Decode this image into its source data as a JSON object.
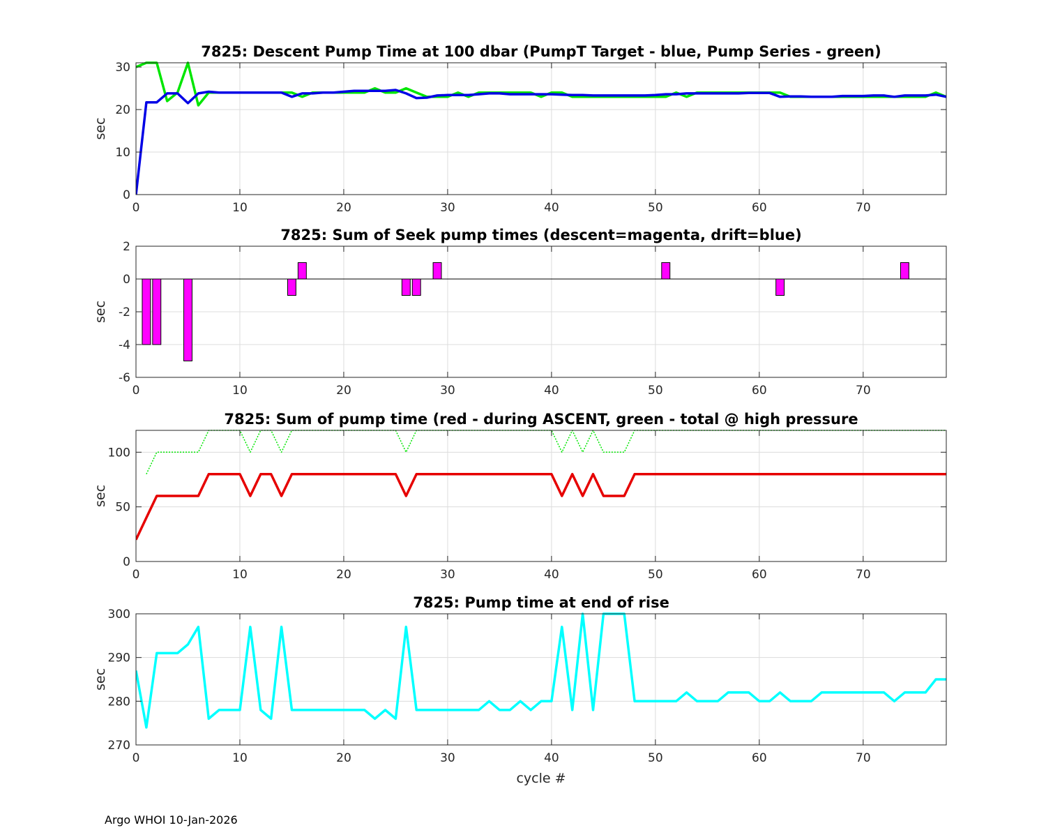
{
  "footer": "Argo WHOI 10-Jan-2026",
  "colors": {
    "green": "#00e600",
    "blue": "#0000e6",
    "magenta": "#ff00ff",
    "red": "#e60000",
    "cyan": "#00ffff",
    "grid": "#dcdcdc",
    "axis": "#262626"
  },
  "chart_data": [
    {
      "type": "line",
      "title": "7825: Descent Pump Time at 100 dbar (PumpT Target - blue, Pump Series - green)",
      "xlabel": "",
      "ylabel": "sec",
      "xlim": [
        0,
        78
      ],
      "ylim": [
        0,
        31
      ],
      "xticks": [
        0,
        10,
        20,
        30,
        40,
        50,
        60,
        70
      ],
      "yticks": [
        0,
        10,
        20,
        30
      ],
      "grid": true,
      "series": [
        {
          "color": "green",
          "style": "solid",
          "x": [
            0,
            1,
            2,
            3,
            4,
            5,
            6,
            7,
            8,
            9,
            10,
            11,
            12,
            13,
            14,
            15,
            16,
            17,
            18,
            19,
            20,
            21,
            22,
            23,
            24,
            25,
            26,
            27,
            28,
            29,
            30,
            31,
            32,
            33,
            34,
            35,
            36,
            37,
            38,
            39,
            40,
            41,
            42,
            43,
            44,
            45,
            46,
            47,
            48,
            49,
            50,
            51,
            52,
            53,
            54,
            55,
            56,
            57,
            58,
            59,
            60,
            61,
            62,
            63,
            64,
            65,
            66,
            67,
            68,
            69,
            70,
            71,
            72,
            73,
            74,
            75,
            76,
            77,
            78
          ],
          "y": [
            30,
            31,
            31,
            22,
            24,
            31,
            21,
            24,
            24,
            24,
            24,
            24,
            24,
            24,
            24,
            24,
            23,
            24,
            24,
            24,
            24,
            24,
            24,
            25,
            24,
            24,
            25,
            24,
            23,
            23,
            23,
            24,
            23,
            24,
            24,
            24,
            24,
            24,
            24,
            23,
            24,
            24,
            23,
            23,
            23,
            23,
            23,
            23,
            23,
            23,
            23,
            23,
            24,
            23,
            24,
            24,
            24,
            24,
            24,
            24,
            24,
            24,
            24,
            23,
            23,
            23,
            23,
            23,
            23,
            23,
            23,
            23,
            23,
            23,
            23,
            23,
            23,
            24,
            23
          ]
        },
        {
          "color": "blue",
          "style": "solid",
          "x": [
            0,
            1,
            2,
            3,
            4,
            5,
            6,
            7,
            8,
            9,
            10,
            11,
            12,
            13,
            14,
            15,
            16,
            17,
            18,
            19,
            20,
            21,
            22,
            23,
            24,
            25,
            26,
            27,
            28,
            29,
            30,
            31,
            32,
            33,
            34,
            35,
            36,
            37,
            38,
            39,
            40,
            41,
            42,
            43,
            44,
            45,
            46,
            47,
            48,
            49,
            50,
            51,
            52,
            53,
            54,
            55,
            56,
            57,
            58,
            59,
            60,
            61,
            62,
            63,
            64,
            65,
            66,
            67,
            68,
            69,
            70,
            71,
            72,
            73,
            74,
            75,
            76,
            77,
            78
          ],
          "y": [
            0,
            21.7,
            21.7,
            23.8,
            23.8,
            21.5,
            23.8,
            24.2,
            24,
            24,
            24,
            24,
            24,
            24,
            24,
            23,
            23.8,
            23.8,
            24,
            24,
            24.2,
            24.4,
            24.4,
            24.4,
            24.4,
            24.6,
            23.8,
            22.7,
            22.8,
            23.3,
            23.4,
            23.4,
            23.4,
            23.6,
            23.8,
            23.8,
            23.6,
            23.6,
            23.6,
            23.6,
            23.6,
            23.5,
            23.4,
            23.4,
            23.3,
            23.3,
            23.3,
            23.3,
            23.3,
            23.3,
            23.4,
            23.6,
            23.6,
            23.8,
            23.8,
            23.8,
            23.8,
            23.8,
            23.8,
            23.9,
            23.9,
            23.9,
            23,
            23.1,
            23.1,
            23,
            23,
            23,
            23.2,
            23.2,
            23.2,
            23.3,
            23.3,
            23,
            23.3,
            23.3,
            23.3,
            23.5,
            23
          ]
        }
      ]
    },
    {
      "type": "bar",
      "title": "7825: Sum of Seek pump times (descent=magenta, drift=blue)",
      "xlabel": "",
      "ylabel": "sec",
      "xlim": [
        0,
        78
      ],
      "ylim": [
        -6,
        2
      ],
      "xticks": [
        0,
        10,
        20,
        30,
        40,
        50,
        60,
        70
      ],
      "yticks": [
        -6,
        -4,
        -2,
        0,
        2
      ],
      "grid": true,
      "bar_width": 0.8,
      "series": [
        {
          "color": "magenta",
          "x": [
            1,
            2,
            5,
            15,
            16,
            26,
            27,
            29,
            51,
            62,
            74
          ],
          "y": [
            -4,
            -4,
            -5,
            -1,
            1,
            -1,
            -1,
            1,
            1,
            -1,
            1
          ]
        }
      ]
    },
    {
      "type": "line",
      "title": "7825: Sum of pump time (red - during ASCENT, green - total @ high pressure",
      "xlabel": "",
      "ylabel": "sec",
      "xlim": [
        0,
        78
      ],
      "ylim": [
        0,
        120
      ],
      "xticks": [
        0,
        10,
        20,
        30,
        40,
        50,
        60,
        70
      ],
      "yticks": [
        0,
        50,
        100
      ],
      "grid": true,
      "series": [
        {
          "color": "green",
          "style": "dotted",
          "x": [
            1,
            2,
            3,
            4,
            5,
            6,
            7,
            8,
            9,
            10,
            11,
            12,
            13,
            14,
            15,
            16,
            17,
            18,
            19,
            20,
            21,
            22,
            23,
            24,
            25,
            26,
            27,
            28,
            29,
            30,
            31,
            32,
            33,
            34,
            35,
            36,
            37,
            38,
            39,
            40,
            41,
            42,
            43,
            44,
            45,
            46,
            47,
            48,
            49,
            50,
            51,
            52,
            53,
            54,
            55,
            56,
            57,
            58,
            59,
            60,
            61,
            62,
            63,
            64,
            65,
            66,
            67,
            68,
            69,
            70,
            71,
            72,
            73,
            74,
            75,
            76,
            77,
            78
          ],
          "y": [
            80,
            100,
            100,
            100,
            100,
            100,
            120,
            120,
            120,
            120,
            100,
            120,
            120,
            100,
            120,
            120,
            120,
            120,
            120,
            120,
            120,
            120,
            120,
            120,
            120,
            100,
            120,
            120,
            120,
            120,
            120,
            120,
            120,
            120,
            120,
            120,
            120,
            120,
            120,
            120,
            100,
            120,
            100,
            120,
            100,
            100,
            100,
            120,
            120,
            120,
            120,
            120,
            120,
            120,
            120,
            120,
            120,
            120,
            120,
            120,
            120,
            120,
            120,
            120,
            120,
            120,
            120,
            120,
            120,
            120,
            120,
            120,
            120,
            120,
            120,
            120,
            120,
            120
          ]
        },
        {
          "color": "red",
          "style": "solid",
          "x": [
            0,
            1,
            2,
            3,
            4,
            5,
            6,
            7,
            8,
            9,
            10,
            11,
            12,
            13,
            14,
            15,
            16,
            17,
            18,
            19,
            20,
            21,
            22,
            23,
            24,
            25,
            26,
            27,
            28,
            29,
            30,
            31,
            32,
            33,
            34,
            35,
            36,
            37,
            38,
            39,
            40,
            41,
            42,
            43,
            44,
            45,
            46,
            47,
            48,
            49,
            50,
            51,
            52,
            53,
            54,
            55,
            56,
            57,
            58,
            59,
            60,
            61,
            62,
            63,
            64,
            65,
            66,
            67,
            68,
            69,
            70,
            71,
            72,
            73,
            74,
            75,
            76,
            77,
            78
          ],
          "y": [
            20,
            40,
            60,
            60,
            60,
            60,
            60,
            80,
            80,
            80,
            80,
            60,
            80,
            80,
            60,
            80,
            80,
            80,
            80,
            80,
            80,
            80,
            80,
            80,
            80,
            80,
            60,
            80,
            80,
            80,
            80,
            80,
            80,
            80,
            80,
            80,
            80,
            80,
            80,
            80,
            80,
            60,
            80,
            60,
            80,
            60,
            60,
            60,
            80,
            80,
            80,
            80,
            80,
            80,
            80,
            80,
            80,
            80,
            80,
            80,
            80,
            80,
            80,
            80,
            80,
            80,
            80,
            80,
            80,
            80,
            80,
            80,
            80,
            80,
            80,
            80,
            80,
            80,
            80
          ]
        }
      ]
    },
    {
      "type": "line",
      "title": "7825: Pump time at end of rise",
      "xlabel": "cycle #",
      "ylabel": "sec",
      "xlim": [
        0,
        78
      ],
      "ylim": [
        270,
        300
      ],
      "xticks": [
        0,
        10,
        20,
        30,
        40,
        50,
        60,
        70
      ],
      "yticks": [
        270,
        280,
        290,
        300
      ],
      "grid": true,
      "series": [
        {
          "color": "cyan",
          "style": "solid",
          "x": [
            0,
            1,
            2,
            3,
            4,
            5,
            6,
            7,
            8,
            9,
            10,
            11,
            12,
            13,
            14,
            15,
            16,
            17,
            18,
            19,
            20,
            21,
            22,
            23,
            24,
            25,
            26,
            27,
            28,
            29,
            30,
            31,
            32,
            33,
            34,
            35,
            36,
            37,
            38,
            39,
            40,
            41,
            42,
            43,
            44,
            45,
            46,
            47,
            48,
            49,
            50,
            51,
            52,
            53,
            54,
            55,
            56,
            57,
            58,
            59,
            60,
            61,
            62,
            63,
            64,
            65,
            66,
            67,
            68,
            69,
            70,
            71,
            72,
            73,
            74,
            75,
            76,
            77,
            78
          ],
          "y": [
            287,
            274,
            291,
            291,
            291,
            293,
            297,
            276,
            278,
            278,
            278,
            297,
            278,
            276,
            297,
            278,
            278,
            278,
            278,
            278,
            278,
            278,
            278,
            276,
            278,
            276,
            297,
            278,
            278,
            278,
            278,
            278,
            278,
            278,
            280,
            278,
            278,
            280,
            278,
            280,
            280,
            297,
            278,
            300,
            278,
            300,
            300,
            300,
            280,
            280,
            280,
            280,
            280,
            282,
            280,
            280,
            280,
            282,
            282,
            282,
            280,
            280,
            282,
            280,
            280,
            280,
            282,
            282,
            282,
            282,
            282,
            282,
            282,
            280,
            282,
            282,
            282,
            285,
            285
          ]
        }
      ]
    }
  ]
}
